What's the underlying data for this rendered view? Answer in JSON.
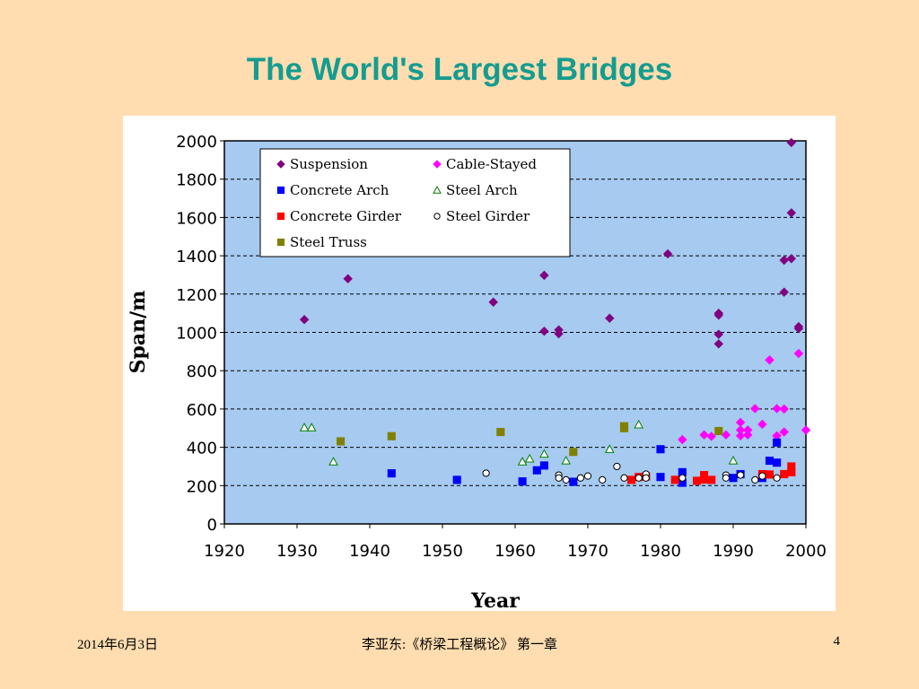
{
  "slide": {
    "title": "The World's Largest Bridges",
    "footer_date": "2014年6月3日",
    "footer_course": "李亚东:《桥梁工程概论》 第一章",
    "page_number": "4"
  },
  "chart_data": {
    "type": "scatter",
    "xlabel": "Year",
    "ylabel": "Span/m",
    "xlim": [
      1920,
      2000
    ],
    "ylim": [
      0,
      2000
    ],
    "xticks": [
      1920,
      1930,
      1940,
      1950,
      1960,
      1970,
      1980,
      1990,
      2000
    ],
    "yticks": [
      0,
      200,
      400,
      600,
      800,
      1000,
      1200,
      1400,
      1600,
      1800,
      2000
    ],
    "grid": "horizontal-dashed",
    "plot_background": "#A6CAF0",
    "legend_position": "top-left",
    "series": [
      {
        "name": "Suspension",
        "marker": "diamond",
        "color": "#800080",
        "filled": true,
        "points": [
          [
            1931,
            1067
          ],
          [
            1937,
            1280
          ],
          [
            1957,
            1158
          ],
          [
            1964,
            1298
          ],
          [
            1964,
            1006
          ],
          [
            1966,
            1013
          ],
          [
            1966,
            993
          ],
          [
            1973,
            1074
          ],
          [
            1981,
            1410
          ],
          [
            1988,
            1100
          ],
          [
            1988,
            1090
          ],
          [
            1988,
            990
          ],
          [
            1988,
            940
          ],
          [
            1997,
            1377
          ],
          [
            1997,
            1210
          ],
          [
            1998,
            1991
          ],
          [
            1998,
            1624
          ],
          [
            1998,
            1385
          ],
          [
            1999,
            1030
          ],
          [
            1999,
            1020
          ]
        ]
      },
      {
        "name": "Cable-Stayed",
        "marker": "diamond",
        "color": "#FF00FF",
        "filled": true,
        "points": [
          [
            1983,
            440
          ],
          [
            1986,
            465
          ],
          [
            1987,
            457
          ],
          [
            1989,
            465
          ],
          [
            1991,
            530
          ],
          [
            1991,
            490
          ],
          [
            1991,
            460
          ],
          [
            1992,
            490
          ],
          [
            1992,
            465
          ],
          [
            1993,
            602
          ],
          [
            1994,
            520
          ],
          [
            1995,
            856
          ],
          [
            1996,
            602
          ],
          [
            1996,
            460
          ],
          [
            1997,
            600
          ],
          [
            1997,
            480
          ],
          [
            1999,
            890
          ],
          [
            2000,
            490
          ]
        ]
      },
      {
        "name": "Concrete Arch",
        "marker": "square",
        "color": "#0000FF",
        "filled": true,
        "points": [
          [
            1943,
            264
          ],
          [
            1952,
            230
          ],
          [
            1961,
            222
          ],
          [
            1963,
            280
          ],
          [
            1964,
            305
          ],
          [
            1968,
            220
          ],
          [
            1980,
            390
          ],
          [
            1980,
            245
          ],
          [
            1983,
            270
          ],
          [
            1983,
            215
          ],
          [
            1990,
            240
          ],
          [
            1991,
            260
          ],
          [
            1994,
            240
          ],
          [
            1995,
            330
          ],
          [
            1996,
            425
          ],
          [
            1996,
            320
          ]
        ]
      },
      {
        "name": "Steel Arch",
        "marker": "triangle",
        "color": "#008000",
        "filled": false,
        "points": [
          [
            1931,
            503
          ],
          [
            1932,
            503
          ],
          [
            1935,
            325
          ],
          [
            1961,
            325
          ],
          [
            1962,
            340
          ],
          [
            1964,
            365
          ],
          [
            1967,
            330
          ],
          [
            1973,
            390
          ],
          [
            1977,
            518
          ],
          [
            1990,
            330
          ]
        ]
      },
      {
        "name": "Concrete Girder",
        "marker": "square",
        "color": "#FF0000",
        "filled": true,
        "points": [
          [
            1976,
            230
          ],
          [
            1977,
            245
          ],
          [
            1978,
            248
          ],
          [
            1982,
            230
          ],
          [
            1985,
            225
          ],
          [
            1986,
            255
          ],
          [
            1986,
            232
          ],
          [
            1987,
            230
          ],
          [
            1994,
            260
          ],
          [
            1995,
            258
          ],
          [
            1997,
            260
          ],
          [
            1998,
            300
          ],
          [
            1998,
            270
          ]
        ]
      },
      {
        "name": "Steel Girder",
        "marker": "circle",
        "color": "#000000",
        "filled": false,
        "points": [
          [
            1956,
            265
          ],
          [
            1966,
            255
          ],
          [
            1966,
            240
          ],
          [
            1967,
            230
          ],
          [
            1969,
            240
          ],
          [
            1970,
            250
          ],
          [
            1972,
            230
          ],
          [
            1974,
            300
          ],
          [
            1975,
            240
          ],
          [
            1977,
            240
          ],
          [
            1978,
            260
          ],
          [
            1978,
            240
          ],
          [
            1983,
            240
          ],
          [
            1989,
            255
          ],
          [
            1989,
            240
          ],
          [
            1991,
            255
          ],
          [
            1993,
            230
          ],
          [
            1994,
            250
          ],
          [
            1996,
            240
          ]
        ]
      },
      {
        "name": "Steel Truss",
        "marker": "square",
        "color": "#808000",
        "filled": true,
        "points": [
          [
            1936,
            431
          ],
          [
            1943,
            458
          ],
          [
            1958,
            480
          ],
          [
            1968,
            376
          ],
          [
            1975,
            510
          ],
          [
            1975,
            500
          ],
          [
            1988,
            485
          ]
        ]
      }
    ]
  }
}
